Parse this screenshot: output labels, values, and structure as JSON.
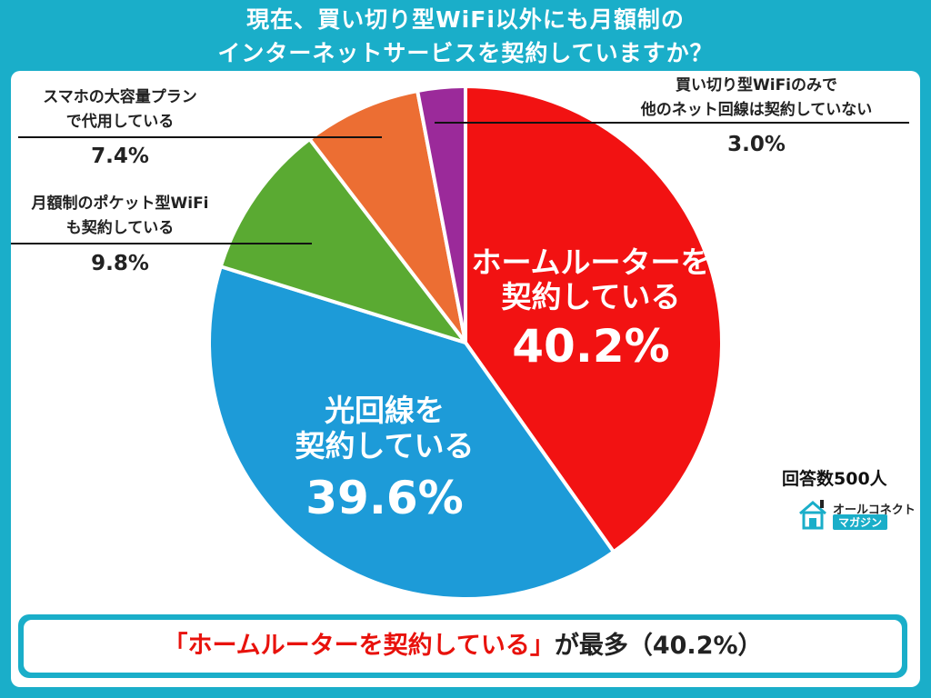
{
  "title_lines": [
    "現在、買い切り型WiFi以外にも月額制の",
    "インターネットサービスを契約していますか？"
  ],
  "chart_data": {
    "type": "pie",
    "title": "現在、買い切り型WiFi以外にも月額制のインターネットサービスを契約していますか？",
    "slices": [
      {
        "label": "ホームルーターを契約している",
        "value": 40.2,
        "color": "#f21212"
      },
      {
        "label": "光回線を契約している",
        "value": 39.6,
        "color": "#1d9bd8"
      },
      {
        "label": "月額制のポケット型WiFiも契約している",
        "value": 9.8,
        "color": "#5aaa32"
      },
      {
        "label": "スマホの大容量プランで代用している",
        "value": 7.4,
        "color": "#ec6e33"
      },
      {
        "label": "買い切り型WiFiのみで他のネット回線は契約していない",
        "value": 3.0,
        "color": "#9b2a9a"
      }
    ],
    "label_lines": [
      [
        "ホームルーターを",
        "契約している"
      ],
      [
        "光回線を",
        "契約している"
      ],
      [
        "月額制のポケット型WiFi",
        "も契約している"
      ],
      [
        "スマホの大容量プラン",
        "で代用している"
      ],
      [
        "買い切り型WiFiのみで",
        "他のネット回線は契約していない"
      ]
    ],
    "value_labels": [
      "40.2%",
      "39.6%",
      "9.8%",
      "7.4%",
      "3.0%"
    ]
  },
  "responses": "回答数500人",
  "logo": {
    "line1": "オールコネクト",
    "line2": "マガジン",
    "icon": "house-icon"
  },
  "banner": {
    "highlight": "「ホームルーターを契約している」",
    "rest": "が最多（40.2%）"
  }
}
